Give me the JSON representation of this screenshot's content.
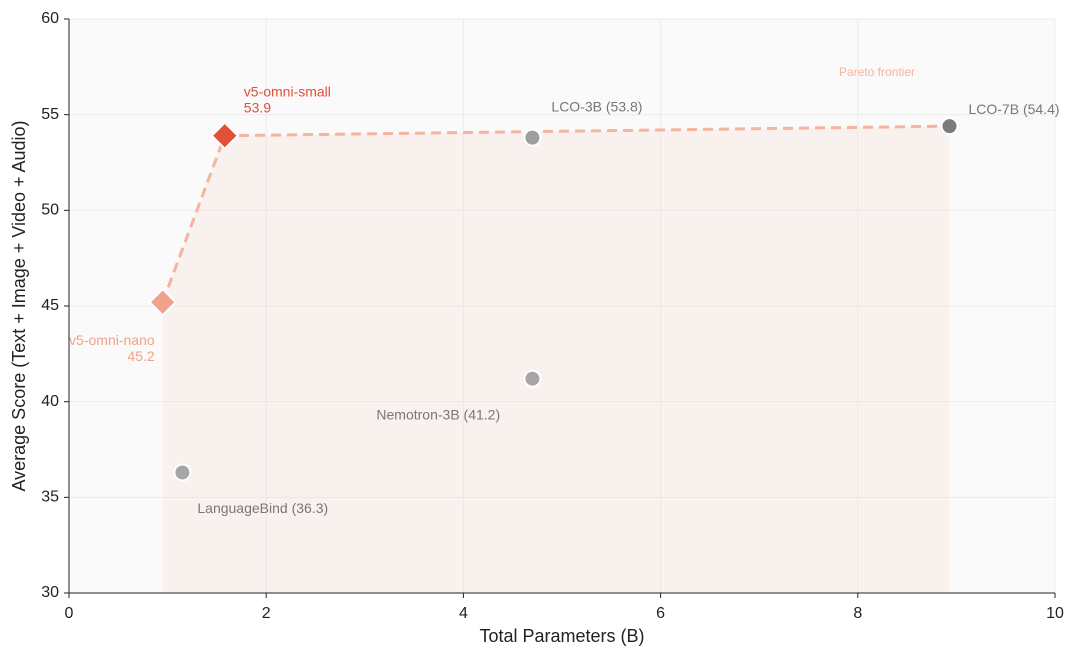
{
  "chart_data": {
    "type": "scatter",
    "x_label": "Total Parameters (B)",
    "y_label": "Average Score (Text + Image + Video + Audio)",
    "xlim": [
      0,
      10
    ],
    "xticks": [
      0,
      2,
      4,
      6,
      8,
      10
    ],
    "ylim": [
      30,
      60
    ],
    "yticks": [
      30,
      35,
      40,
      45,
      50,
      55,
      60
    ],
    "grid": true,
    "frontier_label": "Pareto frontier",
    "frontier_color": "#f4b4a0",
    "points": [
      {
        "label": "v5-omni-nano",
        "value_label": "45.2",
        "x": 0.95,
        "y": 45.2,
        "marker": "diamond",
        "color": "#f0a28a",
        "frontier": true
      },
      {
        "label": "v5-omni-small",
        "value_label": "53.9",
        "x": 1.58,
        "y": 53.9,
        "marker": "diamond",
        "color": "#e0513a",
        "frontier": true
      },
      {
        "label": "LCO-3B (53.8)",
        "x": 4.7,
        "y": 53.8,
        "marker": "circle",
        "color": "#9e9e9e",
        "frontier": false
      },
      {
        "label": "Nemotron-3B (41.2)",
        "x": 4.7,
        "y": 41.2,
        "marker": "circle",
        "color": "#a6a6a6",
        "frontier": false
      },
      {
        "label": "LanguageBind (36.3)",
        "x": 1.15,
        "y": 36.3,
        "marker": "circle",
        "color": "#a6a6a6",
        "frontier": false
      },
      {
        "label": "LCO-7B (54.4)",
        "x": 8.93,
        "y": 54.4,
        "marker": "circle",
        "color": "#7a7a7a",
        "frontier": true
      }
    ]
  }
}
